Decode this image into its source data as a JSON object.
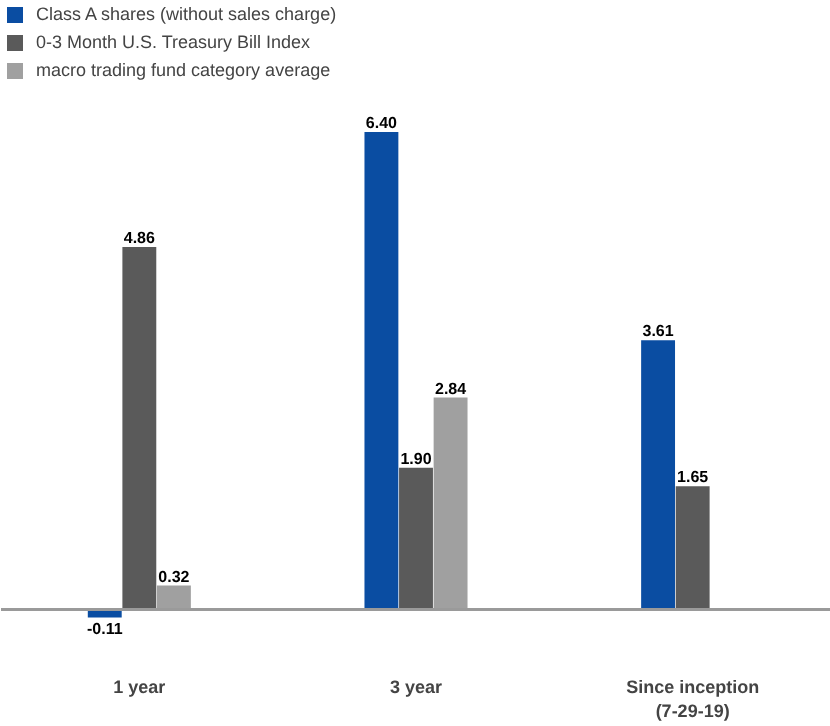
{
  "chart_data": {
    "type": "bar",
    "categories": [
      "1 year",
      "3 year",
      "Since inception\n(7-29-19)"
    ],
    "series": [
      {
        "name": "Class A shares (without sales charge)",
        "color": "#0a4da2",
        "values": [
          -0.11,
          6.4,
          3.61
        ],
        "value_labels": [
          "-0.11",
          "6.40",
          "3.61"
        ]
      },
      {
        "name": "0-3 Month U.S. Treasury Bill Index",
        "color": "#5a5a5a",
        "values": [
          4.86,
          1.9,
          1.65
        ],
        "value_labels": [
          "4.86",
          "1.90",
          "1.65"
        ]
      },
      {
        "name": "macro trading fund category average",
        "color": "#a0a0a0",
        "values": [
          0.32,
          2.84,
          null
        ],
        "value_labels": [
          "0.32",
          "2.84",
          null
        ]
      }
    ],
    "legend": "top left",
    "grid": false
  }
}
